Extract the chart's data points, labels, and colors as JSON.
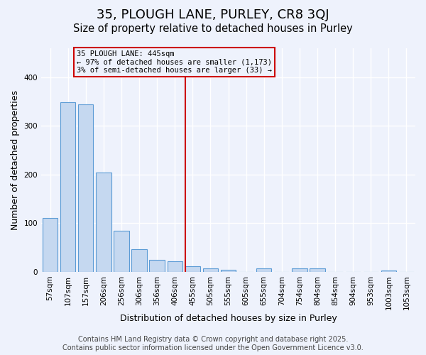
{
  "title": "35, PLOUGH LANE, PURLEY, CR8 3QJ",
  "subtitle": "Size of property relative to detached houses in Purley",
  "xlabel": "Distribution of detached houses by size in Purley",
  "ylabel": "Number of detached properties",
  "categories": [
    "57sqm",
    "107sqm",
    "157sqm",
    "206sqm",
    "256sqm",
    "306sqm",
    "356sqm",
    "406sqm",
    "455sqm",
    "505sqm",
    "555sqm",
    "605sqm",
    "655sqm",
    "704sqm",
    "754sqm",
    "804sqm",
    "854sqm",
    "904sqm",
    "953sqm",
    "1003sqm",
    "1053sqm"
  ],
  "values": [
    111,
    349,
    344,
    204,
    85,
    47,
    25,
    22,
    11,
    7,
    5,
    0,
    7,
    0,
    7,
    7,
    0,
    0,
    0,
    3,
    0
  ],
  "bar_color": "#c5d8f0",
  "bar_edge_color": "#5b9bd5",
  "vline_x": 7.575,
  "marker_label": "35 PLOUGH LANE: 445sqm",
  "annotation_line1": "← 97% of detached houses are smaller (1,173)",
  "annotation_line2": "3% of semi-detached houses are larger (33) →",
  "vline_color": "#cc0000",
  "annotation_box_edge_color": "#cc0000",
  "ylim": [
    0,
    460
  ],
  "footer": "Contains HM Land Registry data © Crown copyright and database right 2025.\nContains public sector information licensed under the Open Government Licence v3.0.",
  "background_color": "#eef2fc",
  "grid_color": "#ffffff",
  "title_fontsize": 13,
  "subtitle_fontsize": 10.5,
  "axis_label_fontsize": 9,
  "tick_fontsize": 7.5,
  "footer_fontsize": 7
}
